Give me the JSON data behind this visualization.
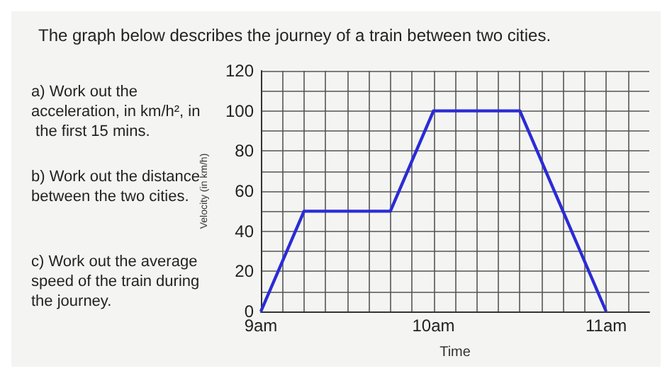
{
  "chart_data": {
    "type": "line",
    "title": "The graph below describes the journey of a train between two cities.",
    "xlabel": "Time",
    "ylabel": "Velocity (in km/h)",
    "annotations": [
      "a) Work out the acceleration, in km/h², in the first 15 mins.",
      "b) Work out the distance between the two cities.",
      "c) Work out the average speed of the train during the journey."
    ],
    "x": [
      9,
      9.25,
      9.75,
      10,
      10.5,
      11
    ],
    "series": [
      {
        "color": "#2b2bd6",
        "values": [
          0,
          50,
          50,
          100,
          100,
          0
        ]
      }
    ],
    "xlim": [
      9,
      11.25
    ],
    "xticks": [
      {
        "value": 9,
        "label": "9am"
      },
      {
        "value": 10,
        "label": "10am"
      },
      {
        "value": 11,
        "label": "11am"
      }
    ],
    "ylim": [
      0,
      120
    ],
    "yticks": [
      0,
      20,
      40,
      60,
      80,
      100,
      120
    ],
    "grid": true,
    "marker": "none",
    "line_style": "solid"
  }
}
